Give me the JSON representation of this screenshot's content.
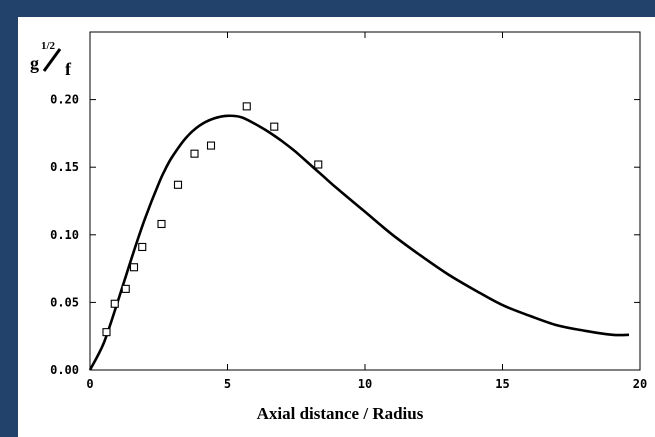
{
  "chart_data": {
    "type": "line",
    "xlabel": "Axial distance / Radius",
    "ylabel": {
      "base": "g",
      "exponent": "1/2",
      "denominator": "f"
    },
    "xlim": [
      0,
      20
    ],
    "ylim": [
      0,
      0.25
    ],
    "x_ticks": [
      "0",
      "5",
      "10",
      "15",
      "20"
    ],
    "y_ticks": [
      "0.00",
      "0.05",
      "0.10",
      "0.15",
      "0.20"
    ],
    "grid": false,
    "series": [
      {
        "kind": "line",
        "color": "#000000",
        "x": [
          0,
          0.5,
          1.0,
          1.5,
          2.0,
          2.5,
          2.7,
          3.0,
          3.5,
          4.0,
          4.5,
          5.0,
          5.5,
          6.0,
          6.5,
          7.0,
          7.5,
          8.0,
          8.5,
          9.0,
          10,
          11,
          12,
          13,
          14,
          15,
          16,
          17,
          18,
          19,
          19.6
        ],
        "y": [
          0,
          0.02,
          0.05,
          0.082,
          0.112,
          0.138,
          0.147,
          0.158,
          0.172,
          0.181,
          0.186,
          0.188,
          0.187,
          0.182,
          0.176,
          0.169,
          0.161,
          0.152,
          0.143,
          0.134,
          0.117,
          0.1,
          0.085,
          0.071,
          0.059,
          0.048,
          0.04,
          0.033,
          0.029,
          0.026,
          0.026
        ]
      },
      {
        "kind": "scatter",
        "marker": "open-square",
        "color": "#000000",
        "x": [
          0.6,
          0.9,
          1.3,
          1.6,
          1.9,
          2.6,
          3.2,
          3.8,
          4.4,
          5.7,
          6.7,
          8.3
        ],
        "y": [
          0.028,
          0.049,
          0.06,
          0.076,
          0.091,
          0.108,
          0.137,
          0.16,
          0.166,
          0.195,
          0.18,
          0.152
        ]
      }
    ]
  }
}
